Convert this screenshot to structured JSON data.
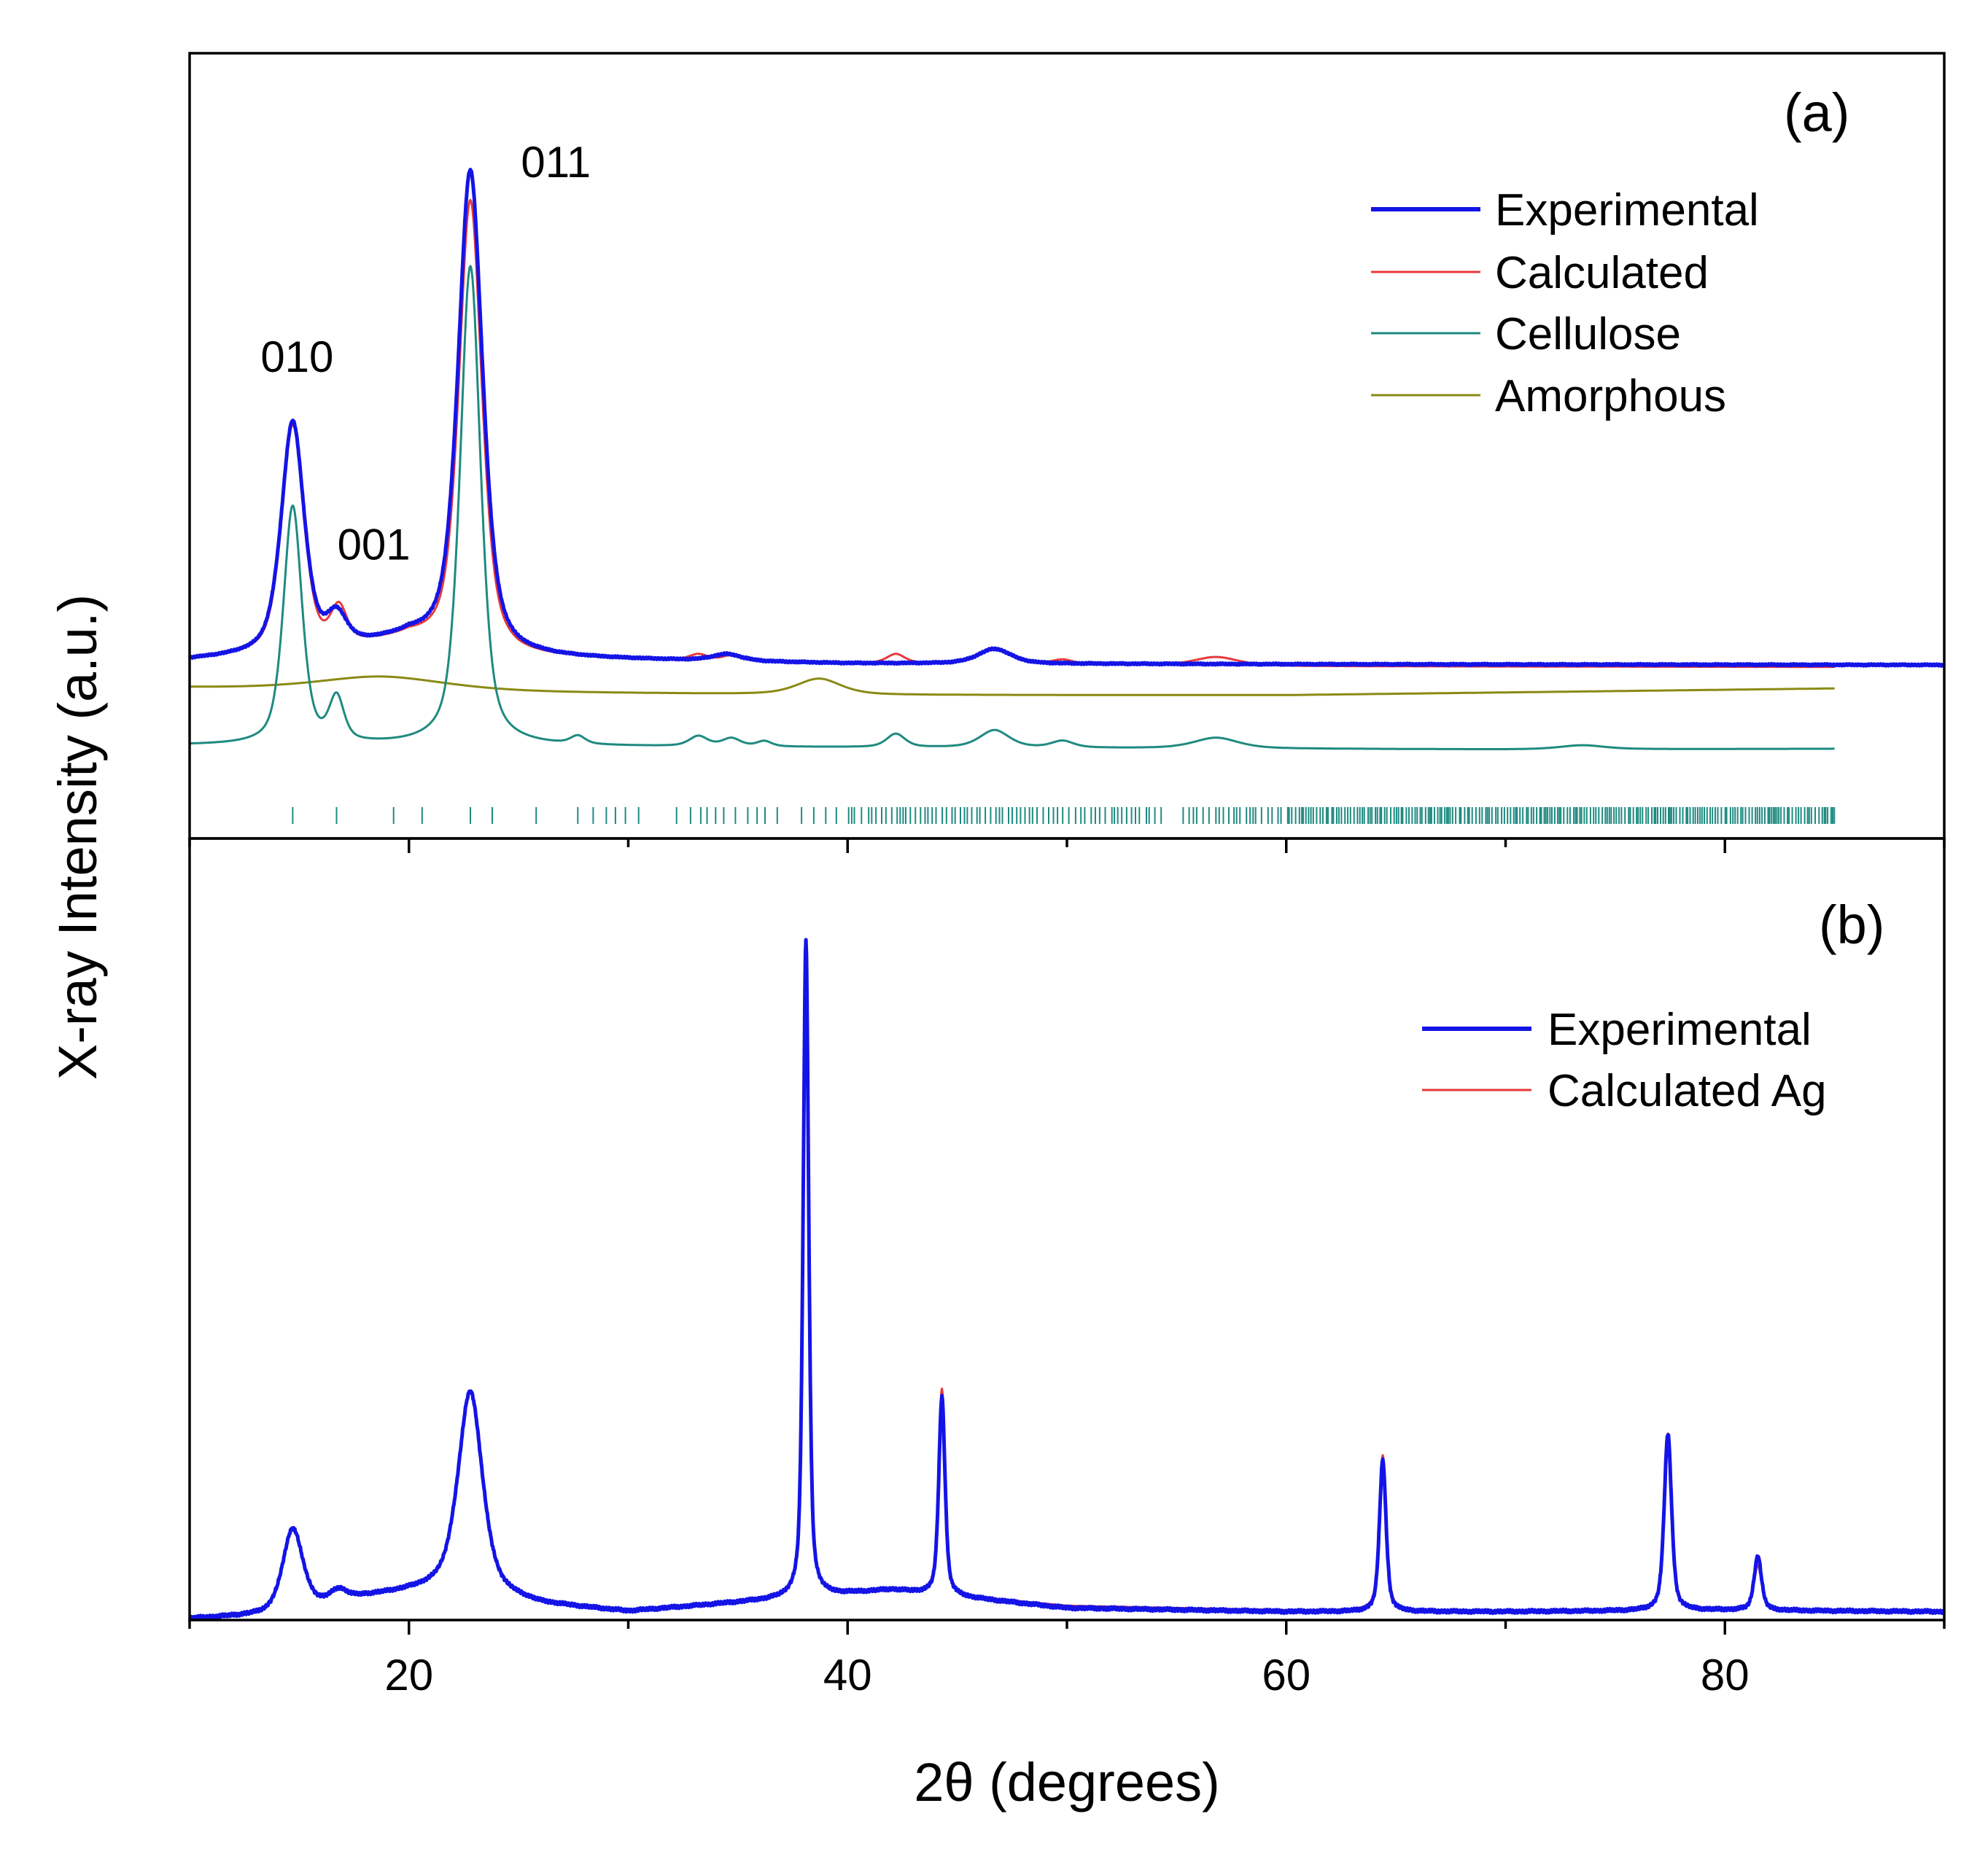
{
  "colors": {
    "experimental": "#1414e6",
    "calculated": "#e8393b",
    "cellulose": "#1e8a80",
    "amorphous": "#8a8a14",
    "frame": "#000000"
  },
  "chart_data": {
    "type": "line",
    "xlabel": "2θ (degrees)",
    "ylabel": "X-ray Intensity (a.u.)",
    "xlim": [
      10,
      90
    ],
    "xticks": [
      20,
      40,
      60,
      80
    ],
    "xtick_labels": [
      "20",
      "40",
      "60",
      "80"
    ],
    "panels": [
      {
        "label": "(a)",
        "ylim": [
          0,
          100
        ],
        "legend_position": "top-right",
        "legend": [
          "Experimental",
          "Calculated",
          "Cellulose",
          "Amorphous"
        ],
        "peak_labels": [
          {
            "text": "010",
            "x": 14.9,
            "y": 62.5
          },
          {
            "text": "001",
            "x": 18.4,
            "y": 34.5
          },
          {
            "text": "011",
            "x": 26.7,
            "y": 91.5
          }
        ],
        "series": [
          {
            "name": "Experimental",
            "color_key": "experimental",
            "width": 5,
            "noise": 0.15,
            "x_range": [
              10,
              90
            ],
            "baseline": [
              [
                10,
                19.5
              ],
              [
                16,
                20.5
              ],
              [
                20,
                22.5
              ],
              [
                25,
                19.8
              ],
              [
                40,
                19.0
              ],
              [
                60,
                18.9
              ],
              [
                90,
                18.8
              ]
            ],
            "peaks": [
              {
                "c": 14.7,
                "h": 34.5,
                "w": 0.62
              },
              {
                "c": 16.7,
                "h": 4.5,
                "w": 0.55
              },
              {
                "c": 22.8,
                "h": 71.5,
                "w": 0.66
              },
              {
                "c": 34.5,
                "h": 1.0,
                "w": 0.8
              },
              {
                "c": 46.7,
                "h": 2.2,
                "w": 0.9
              }
            ]
          },
          {
            "name": "Calculated",
            "color_key": "calculated",
            "width": 3,
            "noise": 0,
            "x_range": [
              10,
              85
            ],
            "baseline": [
              [
                10,
                19.5
              ],
              [
                16,
                20.5
              ],
              [
                20,
                22.5
              ],
              [
                25,
                19.8
              ],
              [
                40,
                19.0
              ],
              [
                60,
                18.6
              ],
              [
                85,
                18.5
              ]
            ],
            "peaks": [
              {
                "c": 14.7,
                "h": 34.0,
                "w": 0.6
              },
              {
                "c": 16.8,
                "h": 5.5,
                "w": 0.45
              },
              {
                "c": 22.8,
                "h": 67.0,
                "w": 0.62
              },
              {
                "c": 33.2,
                "h": 0.9,
                "w": 0.5
              },
              {
                "c": 34.7,
                "h": 0.8,
                "w": 0.5
              },
              {
                "c": 42.2,
                "h": 1.4,
                "w": 0.5
              },
              {
                "c": 46.7,
                "h": 2.4,
                "w": 0.8
              },
              {
                "c": 49.8,
                "h": 0.7,
                "w": 0.6
              },
              {
                "c": 56.8,
                "h": 1.3,
                "w": 1.2
              }
            ]
          },
          {
            "name": "Cellulose",
            "color_key": "cellulose",
            "width": 3,
            "noise": 0,
            "x_range": [
              10,
              85
            ],
            "baseline": [
              [
                10,
                6.8
              ],
              [
                28,
                6.6
              ],
              [
                50,
                6.4
              ],
              [
                70,
                6.2
              ],
              [
                85,
                6.3
              ]
            ],
            "peaks": [
              {
                "c": 14.7,
                "h": 35.5,
                "w": 0.5
              },
              {
                "c": 16.7,
                "h": 6.5,
                "w": 0.4
              },
              {
                "c": 22.8,
                "h": 71.5,
                "w": 0.55
              },
              {
                "c": 27.7,
                "h": 1.2,
                "w": 0.4
              },
              {
                "c": 33.2,
                "h": 1.5,
                "w": 0.5
              },
              {
                "c": 34.7,
                "h": 1.2,
                "w": 0.5
              },
              {
                "c": 36.2,
                "h": 0.8,
                "w": 0.4
              },
              {
                "c": 42.2,
                "h": 2.0,
                "w": 0.5
              },
              {
                "c": 46.7,
                "h": 2.6,
                "w": 0.8
              },
              {
                "c": 49.8,
                "h": 1.0,
                "w": 0.6
              },
              {
                "c": 56.8,
                "h": 1.6,
                "w": 1.2
              },
              {
                "c": 73.5,
                "h": 0.6,
                "w": 1.2
              }
            ]
          },
          {
            "name": "Amorphous",
            "color_key": "amorphous",
            "width": 3,
            "noise": 0,
            "x_range": [
              10,
              85
            ],
            "baseline": [
              [
                10,
                15.4
              ],
              [
                20,
                14.8
              ],
              [
                40,
                14.3
              ],
              [
                60,
                14.3
              ],
              [
                85,
                15.3
              ]
            ],
            "peaks": [
              {
                "c": 18.8,
                "h": 2.2,
                "w": 3.5
              },
              {
                "c": 38.7,
                "h": 2.4,
                "w": 1.2
              }
            ]
          }
        ],
        "bragg_ticks_color_key": "cellulose"
      },
      {
        "label": "(b)",
        "ylim": [
          0,
          100
        ],
        "legend_position": "top-right",
        "legend": [
          "Experimental",
          "Calculated Ag"
        ],
        "series": [
          {
            "name": "Experimental",
            "color_key": "experimental",
            "width": 5,
            "noise": 0.25,
            "x_range": [
              10,
              90
            ],
            "baseline": [
              [
                10,
                4.0
              ],
              [
                14,
                4.5
              ],
              [
                18,
                7.0
              ],
              [
                22,
                8.5
              ],
              [
                26,
                6.0
              ],
              [
                30,
                5.0
              ],
              [
                38,
                7.0
              ],
              [
                42,
                8.0
              ],
              [
                50,
                5.5
              ],
              [
                60,
                5.0
              ],
              [
                70,
                5.0
              ],
              [
                80,
                5.2
              ],
              [
                90,
                5.0
              ]
            ],
            "peaks": [
              {
                "c": 14.7,
                "h": 11.5,
                "w": 0.55
              },
              {
                "c": 16.8,
                "h": 1.5,
                "w": 0.45
              },
              {
                "c": 22.8,
                "h": 27.5,
                "w": 0.65
              },
              {
                "c": 38.1,
                "h": 91.0,
                "w": 0.15
              },
              {
                "c": 44.3,
                "h": 27.5,
                "w": 0.17
              },
              {
                "c": 64.4,
                "h": 21.0,
                "w": 0.18
              },
              {
                "c": 77.4,
                "h": 24.5,
                "w": 0.2
              },
              {
                "c": 81.5,
                "h": 7.5,
                "w": 0.2
              }
            ]
          },
          {
            "name": "Calculated Ag",
            "color_key": "calculated",
            "width": 3,
            "noise": 0,
            "x_range": [
              35,
              85
            ],
            "baseline": [
              [
                35,
                6.5
              ],
              [
                38,
                7.0
              ],
              [
                42,
                8.0
              ],
              [
                50,
                5.8
              ],
              [
                60,
                5.2
              ],
              [
                70,
                5.1
              ],
              [
                80,
                5.2
              ],
              [
                85,
                5.2
              ]
            ],
            "peaks": [
              {
                "c": 38.1,
                "h": 83.0,
                "w": 0.16
              },
              {
                "c": 44.3,
                "h": 28.5,
                "w": 0.18
              },
              {
                "c": 64.4,
                "h": 21.5,
                "w": 0.19
              },
              {
                "c": 77.4,
                "h": 24.5,
                "w": 0.21
              },
              {
                "c": 81.5,
                "h": 6.2,
                "w": 0.21
              }
            ]
          }
        ]
      }
    ]
  }
}
